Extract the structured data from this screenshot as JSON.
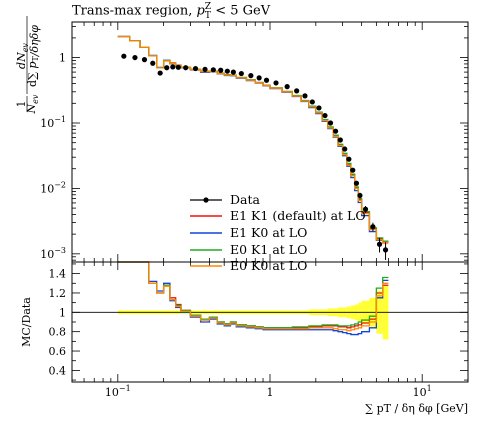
{
  "title_parts": {
    "prefix": "Trans-max region,",
    "var": "p",
    "sub": "T",
    "sup": "Z",
    "suffix": "< 5 GeV"
  },
  "chart_data": {
    "type": "line",
    "x_scale": "log",
    "xlim": [
      0.05,
      20
    ],
    "xlabel": "∑ pT / δη δφ [GeV]",
    "x_ticks": [
      {
        "v": 0.1,
        "base": "10",
        "exp": "−1"
      },
      {
        "v": 1,
        "label": "1"
      },
      {
        "v": 10,
        "base": "10",
        "exp": "1"
      }
    ],
    "main": {
      "y_scale": "log",
      "ylim": [
        0.00075,
        3.5
      ],
      "ylabel": "1/Nev dNev / d∑pT/δηδφ",
      "ylabel_parts": {
        "one": "1",
        "dN": "dN",
        "ev": "ev",
        "N": "N",
        "d": "d",
        "sum": "∑",
        "p": "p",
        "T": "T",
        "div": "/",
        "deta": "δηδφ"
      },
      "y_ticks": [
        {
          "v": 0.001,
          "base": "10",
          "exp": "−3"
        },
        {
          "v": 0.01,
          "base": "10",
          "exp": "−2"
        },
        {
          "v": 0.1,
          "base": "10",
          "exp": "−1"
        },
        {
          "v": 1,
          "label": "1"
        }
      ]
    },
    "ratio": {
      "ylabel": "MC/Data",
      "ylim": [
        0.28,
        1.52
      ],
      "y_ticks": [
        0.4,
        0.6,
        0.8,
        1,
        1.2,
        1.4
      ],
      "y_tick_labels": [
        "0.4",
        "0.6",
        "0.8",
        "1",
        "1.2",
        "1.4"
      ]
    },
    "bin_edges": [
      0.1,
      0.12,
      0.14,
      0.16,
      0.18,
      0.2,
      0.22,
      0.24,
      0.26,
      0.3,
      0.35,
      0.4,
      0.45,
      0.5,
      0.55,
      0.6,
      0.7,
      0.8,
      0.9,
      1.0,
      1.2,
      1.4,
      1.6,
      1.8,
      2.0,
      2.2,
      2.4,
      2.6,
      2.8,
      3.0,
      3.2,
      3.4,
      3.6,
      3.8,
      4.0,
      4.5,
      5.0,
      5.5,
      6.0
    ],
    "data": {
      "name": "Data",
      "y": [
        1.05,
        1.0,
        0.93,
        0.82,
        0.58,
        0.7,
        0.72,
        0.71,
        0.7,
        0.68,
        0.66,
        0.65,
        0.64,
        0.62,
        0.6,
        0.57,
        0.53,
        0.49,
        0.45,
        0.41,
        0.36,
        0.31,
        0.26,
        0.21,
        0.17,
        0.13,
        0.1,
        0.075,
        0.055,
        0.04,
        0.028,
        0.019,
        0.012,
        0.0078,
        0.0048,
        0.0026,
        0.0014,
        0.00115
      ],
      "yerr_rel": [
        0.02,
        0.02,
        0.02,
        0.02,
        0.02,
        0.02,
        0.02,
        0.02,
        0.02,
        0.02,
        0.02,
        0.02,
        0.02,
        0.02,
        0.02,
        0.02,
        0.02,
        0.02,
        0.02,
        0.02,
        0.02,
        0.02,
        0.02,
        0.03,
        0.03,
        0.03,
        0.04,
        0.04,
        0.05,
        0.05,
        0.06,
        0.07,
        0.08,
        0.1,
        0.12,
        0.15,
        0.25,
        0.3
      ]
    },
    "data_band_rel": [
      0.02,
      0.02,
      0.02,
      0.02,
      0.02,
      0.02,
      0.02,
      0.02,
      0.02,
      0.02,
      0.02,
      0.02,
      0.02,
      0.02,
      0.02,
      0.02,
      0.02,
      0.02,
      0.02,
      0.02,
      0.02,
      0.02,
      0.02,
      0.03,
      0.03,
      0.03,
      0.04,
      0.04,
      0.05,
      0.05,
      0.06,
      0.07,
      0.08,
      0.1,
      0.12,
      0.15,
      0.22,
      0.28
    ],
    "series": [
      {
        "name": "E1 K1 (default) at LO",
        "color": "#ee1111",
        "ratio": [
          2.0,
          1.8,
          1.55,
          1.3,
          1.2,
          1.28,
          1.15,
          1.08,
          1.02,
          0.97,
          0.93,
          0.95,
          0.9,
          0.88,
          0.9,
          0.87,
          0.86,
          0.85,
          0.84,
          0.84,
          0.84,
          0.84,
          0.84,
          0.85,
          0.85,
          0.86,
          0.86,
          0.86,
          0.85,
          0.85,
          0.84,
          0.85,
          0.86,
          0.87,
          0.89,
          0.93,
          1.2,
          1.28
        ]
      },
      {
        "name": "E1 K0 at LO",
        "color": "#1144dd",
        "ratio": [
          2.0,
          1.8,
          1.55,
          1.32,
          1.22,
          1.3,
          1.12,
          1.05,
          1.0,
          0.95,
          0.9,
          0.93,
          0.88,
          0.86,
          0.88,
          0.85,
          0.84,
          0.83,
          0.82,
          0.82,
          0.82,
          0.82,
          0.82,
          0.82,
          0.82,
          0.82,
          0.82,
          0.81,
          0.8,
          0.79,
          0.78,
          0.77,
          0.77,
          0.78,
          0.8,
          0.84,
          1.15,
          1.33
        ]
      },
      {
        "name": "E0 K1 at LO",
        "color": "#22aa22",
        "ratio": [
          2.0,
          1.8,
          1.55,
          1.3,
          1.2,
          1.28,
          1.13,
          1.07,
          1.02,
          0.97,
          0.93,
          0.95,
          0.9,
          0.88,
          0.9,
          0.87,
          0.86,
          0.85,
          0.84,
          0.84,
          0.84,
          0.85,
          0.85,
          0.86,
          0.86,
          0.87,
          0.87,
          0.87,
          0.86,
          0.86,
          0.86,
          0.87,
          0.88,
          0.9,
          0.92,
          0.96,
          1.25,
          1.36
        ]
      },
      {
        "name": "E0 K0 at LO",
        "color": "#ff8800",
        "ratio": [
          2.0,
          1.8,
          1.55,
          1.3,
          1.2,
          1.27,
          1.13,
          1.06,
          1.01,
          0.96,
          0.92,
          0.94,
          0.89,
          0.87,
          0.89,
          0.86,
          0.85,
          0.84,
          0.83,
          0.83,
          0.83,
          0.83,
          0.83,
          0.84,
          0.84,
          0.84,
          0.84,
          0.83,
          0.82,
          0.82,
          0.81,
          0.82,
          0.83,
          0.84,
          0.86,
          0.9,
          1.17,
          1.3
        ]
      }
    ],
    "legend_placement": "lower-center",
    "legend": [
      "Data",
      "E1 K1 (default) at LO",
      "E1 K0 at LO",
      "E0 K1 at LO",
      "E0 K0 at LO"
    ]
  }
}
